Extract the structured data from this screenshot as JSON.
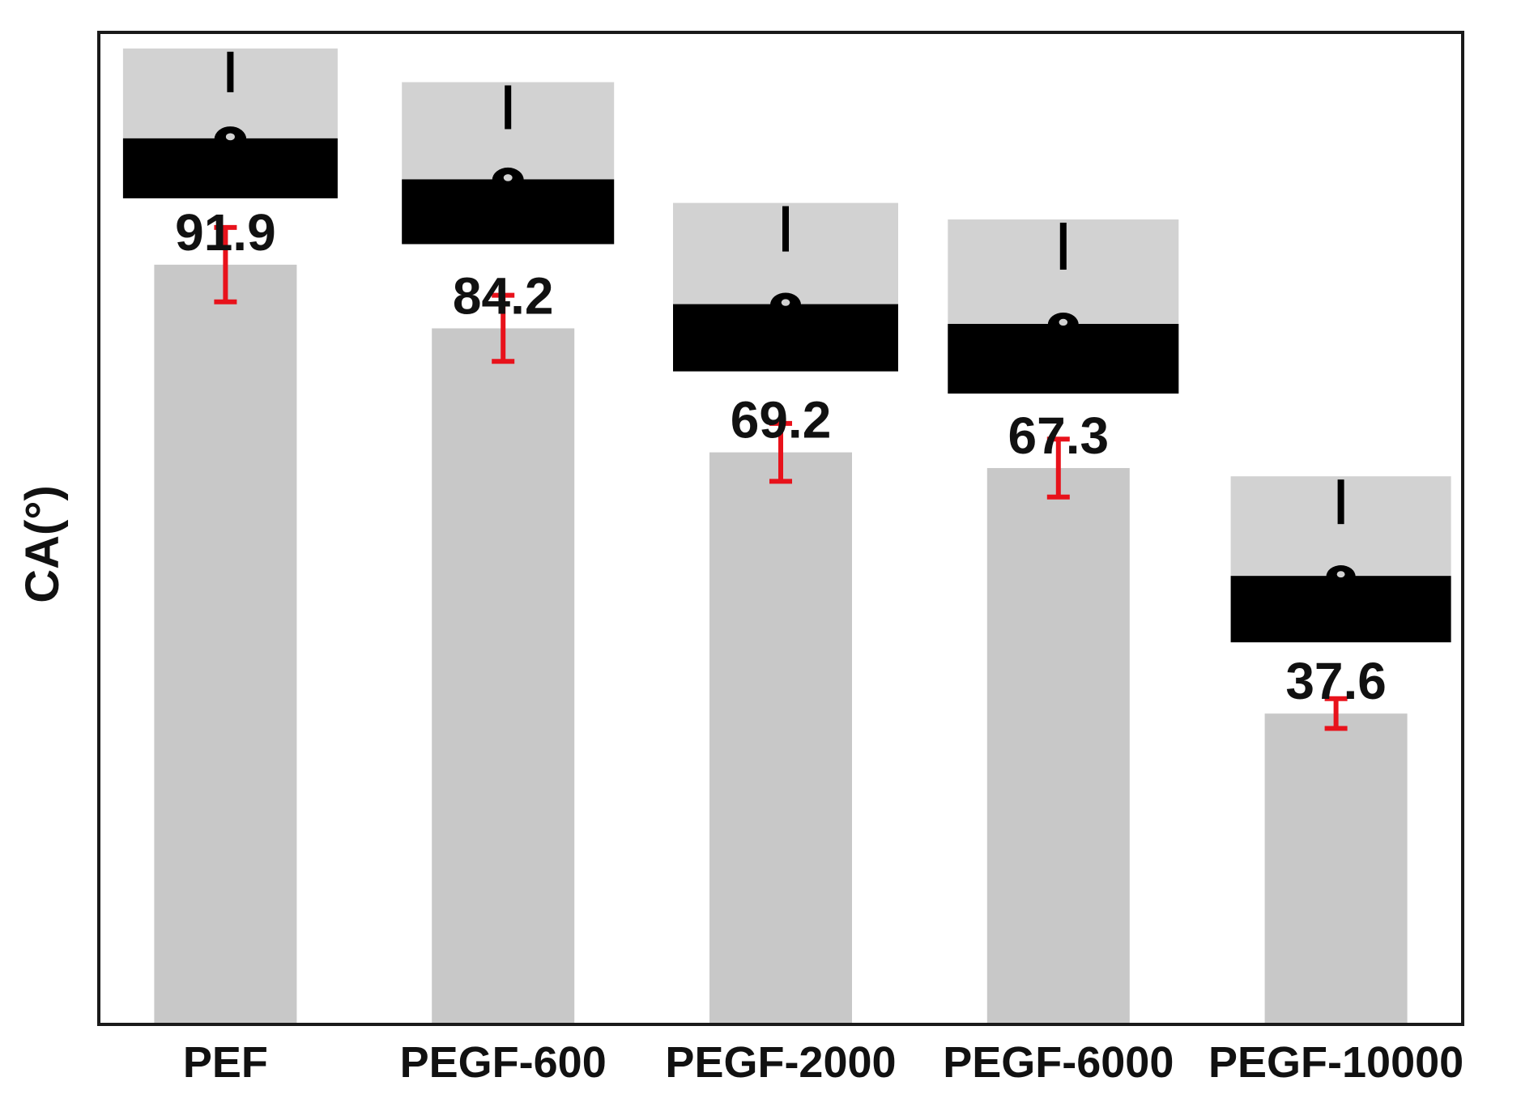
{
  "chart_data": {
    "type": "bar",
    "categories": [
      "PEF",
      "PEGF-600",
      "PEGF-2000",
      "PEGF-6000",
      "PEGF-10000"
    ],
    "values": [
      91.9,
      84.2,
      69.2,
      67.3,
      37.6
    ],
    "value_labels": [
      "91.9",
      "84.2",
      "69.2",
      "67.3",
      "37.6"
    ],
    "errors": [
      4.5,
      4.0,
      3.5,
      3.5,
      1.8
    ],
    "title": "",
    "xlabel": "",
    "ylabel": "CA(°)",
    "ylim": [
      0,
      120
    ],
    "grid": false,
    "legend": "none",
    "insets": "water droplet contact-angle photographs above each bar",
    "colors": {
      "bar": "#c8c8c8",
      "error_bar": "#e8121b",
      "frame": "#1a1a1a",
      "inset_background": "#d2d2d2",
      "inset_substrate": "#000000"
    }
  }
}
